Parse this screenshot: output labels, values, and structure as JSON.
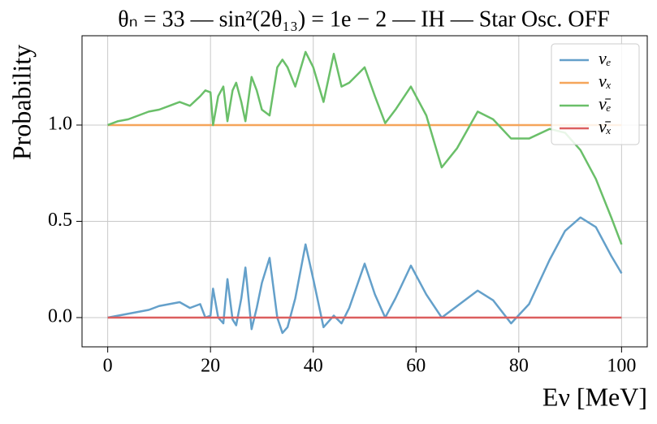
{
  "chart_data": {
    "type": "line",
    "title": "θₙ = 33 — sin²(2θ₁₃) = 1e − 2 — IH — Star Osc. OFF",
    "y_label": "Probability",
    "x_label": "Eν [MeV]",
    "x": [
      0,
      2,
      4,
      6,
      8,
      10,
      12,
      14,
      16,
      18,
      19,
      20,
      20.5,
      21.5,
      22.5,
      23.3,
      24.3,
      25,
      26,
      26.8,
      28,
      29,
      30,
      31.5,
      33,
      34,
      35,
      36.5,
      38.5,
      40,
      42,
      44,
      45.5,
      47,
      50,
      52,
      54,
      56,
      59,
      62,
      65,
      68,
      72,
      75,
      78.5,
      82,
      86,
      89,
      92,
      95,
      98,
      100
    ],
    "series": [
      {
        "name": "νₑ",
        "color": "#64a0ca",
        "values": [
          0,
          0.01,
          0.02,
          0.03,
          0.04,
          0.06,
          0.07,
          0.08,
          0.05,
          0.07,
          0.0,
          0.01,
          0.15,
          0.0,
          -0.03,
          0.2,
          -0.01,
          -0.04,
          0.1,
          0.26,
          -0.06,
          0.05,
          0.18,
          0.31,
          0.0,
          -0.08,
          -0.05,
          0.1,
          0.38,
          0.2,
          -0.05,
          0.01,
          -0.03,
          0.05,
          0.28,
          0.12,
          0.0,
          0.1,
          0.27,
          0.12,
          0.0,
          0.06,
          0.14,
          0.09,
          -0.03,
          0.07,
          0.3,
          0.45,
          0.52,
          0.47,
          0.32,
          0.23
        ]
      },
      {
        "name": "νₓ",
        "color": "#f5a55a",
        "values": [
          1,
          1,
          1,
          1,
          1,
          1,
          1,
          1,
          1,
          1,
          1,
          1,
          1,
          1,
          1,
          1,
          1,
          1,
          1,
          1,
          1,
          1,
          1,
          1,
          1,
          1,
          1,
          1,
          1,
          1,
          1,
          1,
          1,
          1,
          1,
          1,
          1,
          1,
          1,
          1,
          1,
          1,
          1,
          1,
          1,
          1,
          1,
          1,
          1,
          1,
          1,
          1
        ]
      },
      {
        "name": "ν̄ₑ",
        "color": "#6abf69",
        "values": [
          1.0,
          1.02,
          1.03,
          1.05,
          1.07,
          1.08,
          1.1,
          1.12,
          1.1,
          1.15,
          1.18,
          1.17,
          1.0,
          1.15,
          1.2,
          1.02,
          1.18,
          1.22,
          1.12,
          1.02,
          1.25,
          1.18,
          1.08,
          1.05,
          1.3,
          1.34,
          1.3,
          1.2,
          1.38,
          1.3,
          1.12,
          1.37,
          1.2,
          1.22,
          1.3,
          1.15,
          1.01,
          1.08,
          1.2,
          1.05,
          0.78,
          0.88,
          1.07,
          1.03,
          0.93,
          0.93,
          0.98,
          0.96,
          0.87,
          0.72,
          0.52,
          0.38
        ]
      },
      {
        "name": "ν̄ₓ",
        "color": "#dc5e5e",
        "values": [
          0,
          0,
          0,
          0,
          0,
          0,
          0,
          0,
          0,
          0,
          0,
          0,
          0,
          0,
          0,
          0,
          0,
          0,
          0,
          0,
          0,
          0,
          0,
          0,
          0,
          0,
          0,
          0,
          0,
          0,
          0,
          0,
          0,
          0,
          0,
          0,
          0,
          0,
          0,
          0,
          0,
          0,
          0,
          0,
          0,
          0,
          0,
          0,
          0,
          0,
          0,
          0
        ]
      }
    ],
    "xlim": [
      -5,
      105
    ],
    "ylim": [
      -0.152,
      1.464
    ],
    "xticks": [
      0,
      20,
      40,
      60,
      80,
      100
    ],
    "yticks": [
      {
        "value": 0,
        "label": "0.0"
      },
      {
        "value": 0.5,
        "label": "0.5"
      },
      {
        "value": 1,
        "label": "1.0"
      }
    ],
    "grid": true,
    "legend": "upper right"
  }
}
